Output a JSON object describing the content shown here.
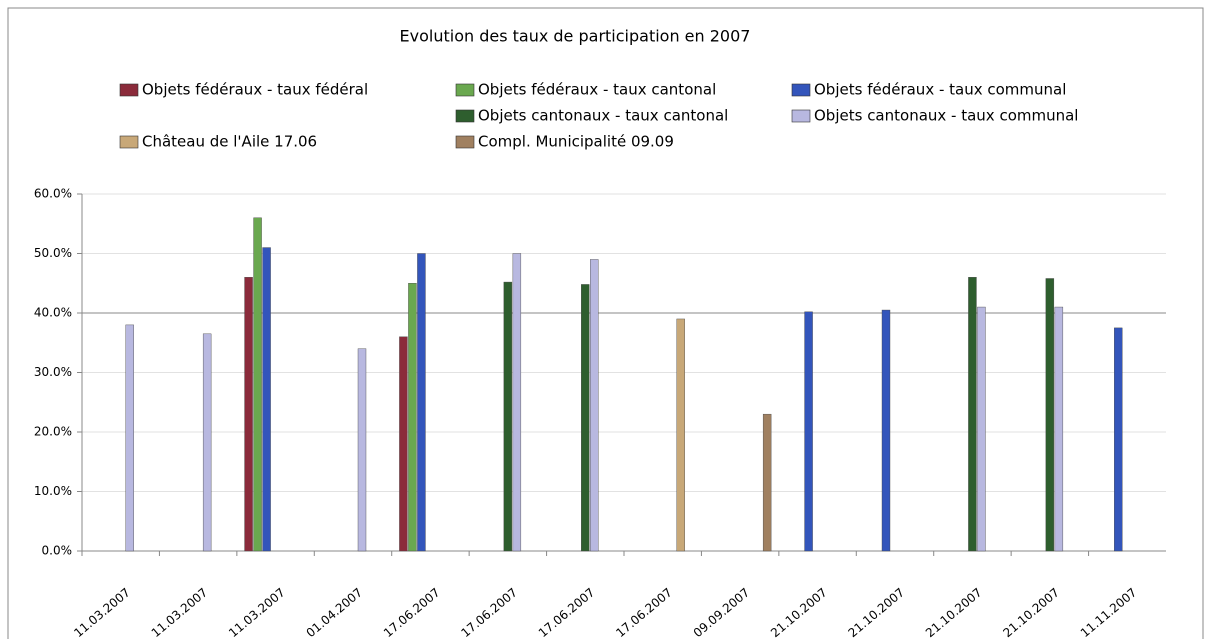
{
  "chart_data": {
    "type": "bar",
    "title": "Evolution des taux de participation en 2007",
    "categories": [
      "11.03.2007",
      "11.03.2007",
      "11.03.2007",
      "01.04.2007",
      "17.06.2007",
      "17.06.2007",
      "17.06.2007",
      "17.06.2007",
      "09.09.2007",
      "21.10.2007",
      "21.10.2007",
      "21.10.2007",
      "21.10.2007",
      "11.11.2007"
    ],
    "series": [
      {
        "name": "Objets fédéraux - taux fédéral",
        "color": "#8b2b3b",
        "values": [
          null,
          null,
          46,
          null,
          36,
          null,
          null,
          null,
          null,
          null,
          null,
          null,
          null,
          null
        ]
      },
      {
        "name": "Objets fédéraux - taux cantonal",
        "color": "#6aa84f",
        "values": [
          null,
          null,
          56,
          null,
          45,
          null,
          null,
          null,
          null,
          null,
          null,
          null,
          null,
          null
        ]
      },
      {
        "name": "Objets fédéraux - taux communal",
        "color": "#3355bb",
        "values": [
          null,
          null,
          51,
          null,
          50,
          null,
          null,
          null,
          null,
          40.2,
          40.5,
          null,
          null,
          37.5
        ]
      },
      {
        "name": "Objets cantonaux - taux cantonal",
        "color": "#2e5e2e",
        "values": [
          null,
          null,
          null,
          null,
          null,
          45.2,
          44.8,
          null,
          null,
          null,
          null,
          46,
          45.8,
          null
        ]
      },
      {
        "name": "Objets cantonaux - taux communal",
        "color": "#b8b8e0",
        "values": [
          38,
          36.5,
          null,
          34,
          null,
          50,
          49,
          null,
          null,
          null,
          null,
          41,
          41,
          null
        ]
      },
      {
        "name": "Château de l'Aile 17.06",
        "color": "#c8a878",
        "values": [
          null,
          null,
          null,
          null,
          null,
          null,
          null,
          39,
          null,
          null,
          null,
          null,
          null,
          null
        ]
      },
      {
        "name": "Compl. Municipalité 09.09",
        "color": "#a08060",
        "values": [
          null,
          null,
          null,
          null,
          null,
          null,
          null,
          null,
          23,
          null,
          null,
          null,
          null,
          null
        ]
      }
    ],
    "ylim": [
      0,
      60
    ],
    "yticks": [
      {
        "value": 0,
        "label": "0.0%"
      },
      {
        "value": 10,
        "label": "10.0%"
      },
      {
        "value": 20,
        "label": "20.0%"
      },
      {
        "value": 30,
        "label": "30.0%"
      },
      {
        "value": 40,
        "label": "40.0%"
      },
      {
        "value": 50,
        "label": "50.0%"
      },
      {
        "value": 60,
        "label": "60.0%"
      }
    ],
    "grid": true,
    "reference_line": 40
  }
}
